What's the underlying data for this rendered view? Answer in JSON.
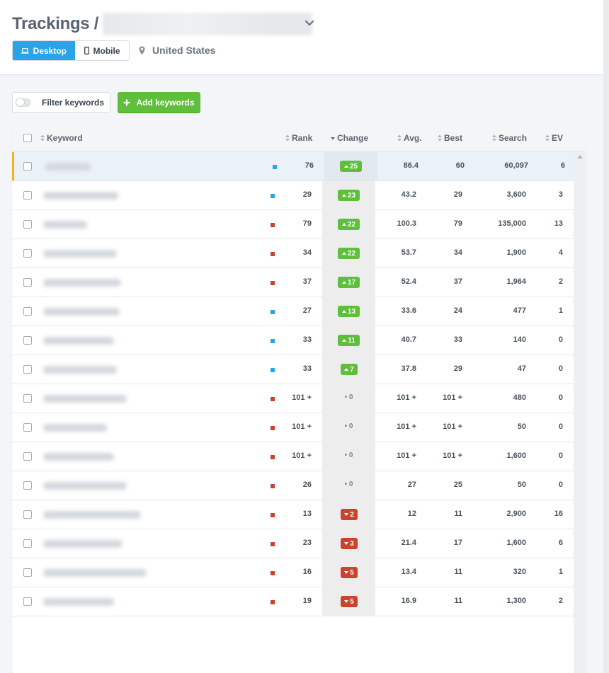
{
  "header": {
    "title": "Trackings /",
    "device_toggle": [
      {
        "label": "Desktop",
        "active": true
      },
      {
        "label": "Mobile",
        "active": false
      }
    ],
    "location": "United States"
  },
  "toolbar": {
    "filter_label": "Filter keywords",
    "add_label": "Add keywords"
  },
  "table": {
    "columns": {
      "keyword": "Keyword",
      "rank": "Rank",
      "change": "Change",
      "avg": "Avg.",
      "best": "Best",
      "search": "Search",
      "ev": "EV"
    },
    "rows": [
      {
        "rank": "76",
        "change": "25",
        "direction": "up",
        "avg": "86.4",
        "best": "60",
        "search": "60,097",
        "ev": "6",
        "marker": "#2aa3e8"
      },
      {
        "rank": "29",
        "change": "23",
        "direction": "up",
        "avg": "43.2",
        "best": "29",
        "search": "3,600",
        "ev": "3",
        "marker": "#2aa3e8"
      },
      {
        "rank": "79",
        "change": "22",
        "direction": "up",
        "avg": "100.3",
        "best": "79",
        "search": "135,000",
        "ev": "13",
        "marker": "#c8442b"
      },
      {
        "rank": "34",
        "change": "22",
        "direction": "up",
        "avg": "53.7",
        "best": "34",
        "search": "1,900",
        "ev": "4",
        "marker": "#c8442b"
      },
      {
        "rank": "37",
        "change": "17",
        "direction": "up",
        "avg": "52.4",
        "best": "37",
        "search": "1,964",
        "ev": "2",
        "marker": "#c8442b"
      },
      {
        "rank": "27",
        "change": "13",
        "direction": "up",
        "avg": "33.6",
        "best": "24",
        "search": "477",
        "ev": "1",
        "marker": "#2aa3e8"
      },
      {
        "rank": "33",
        "change": "11",
        "direction": "up",
        "avg": "40.7",
        "best": "33",
        "search": "140",
        "ev": "0",
        "marker": "#2aa3e8"
      },
      {
        "rank": "33",
        "change": "7",
        "direction": "up",
        "avg": "37.8",
        "best": "29",
        "search": "47",
        "ev": "0",
        "marker": "#2aa3e8"
      },
      {
        "rank": "101 +",
        "change": "0",
        "direction": "none",
        "avg": "101 +",
        "best": "101 +",
        "search": "480",
        "ev": "0",
        "marker": "#c8442b"
      },
      {
        "rank": "101 +",
        "change": "0",
        "direction": "none",
        "avg": "101 +",
        "best": "101 +",
        "search": "50",
        "ev": "0",
        "marker": "#c8442b"
      },
      {
        "rank": "101 +",
        "change": "0",
        "direction": "none",
        "avg": "101 +",
        "best": "101 +",
        "search": "1,600",
        "ev": "0",
        "marker": "#c8442b"
      },
      {
        "rank": "26",
        "change": "0",
        "direction": "none",
        "avg": "27",
        "best": "25",
        "search": "50",
        "ev": "0",
        "marker": "#c8442b"
      },
      {
        "rank": "13",
        "change": "2",
        "direction": "down",
        "avg": "12",
        "best": "11",
        "search": "2,900",
        "ev": "16",
        "marker": "#c8442b"
      },
      {
        "rank": "23",
        "change": "3",
        "direction": "down",
        "avg": "21.4",
        "best": "17",
        "search": "1,600",
        "ev": "6",
        "marker": "#c8442b"
      },
      {
        "rank": "16",
        "change": "5",
        "direction": "down",
        "avg": "13.4",
        "best": "11",
        "search": "320",
        "ev": "1",
        "marker": "#c8442b"
      },
      {
        "rank": "19",
        "change": "5",
        "direction": "down",
        "avg": "16.9",
        "best": "11",
        "search": "1,300",
        "ev": "2",
        "marker": "#c8442b"
      }
    ]
  },
  "colors": {
    "accent": "#2aa3e8",
    "positive": "#5fbf3c",
    "negative": "#c8442b",
    "highlight": "#f2b51c"
  }
}
